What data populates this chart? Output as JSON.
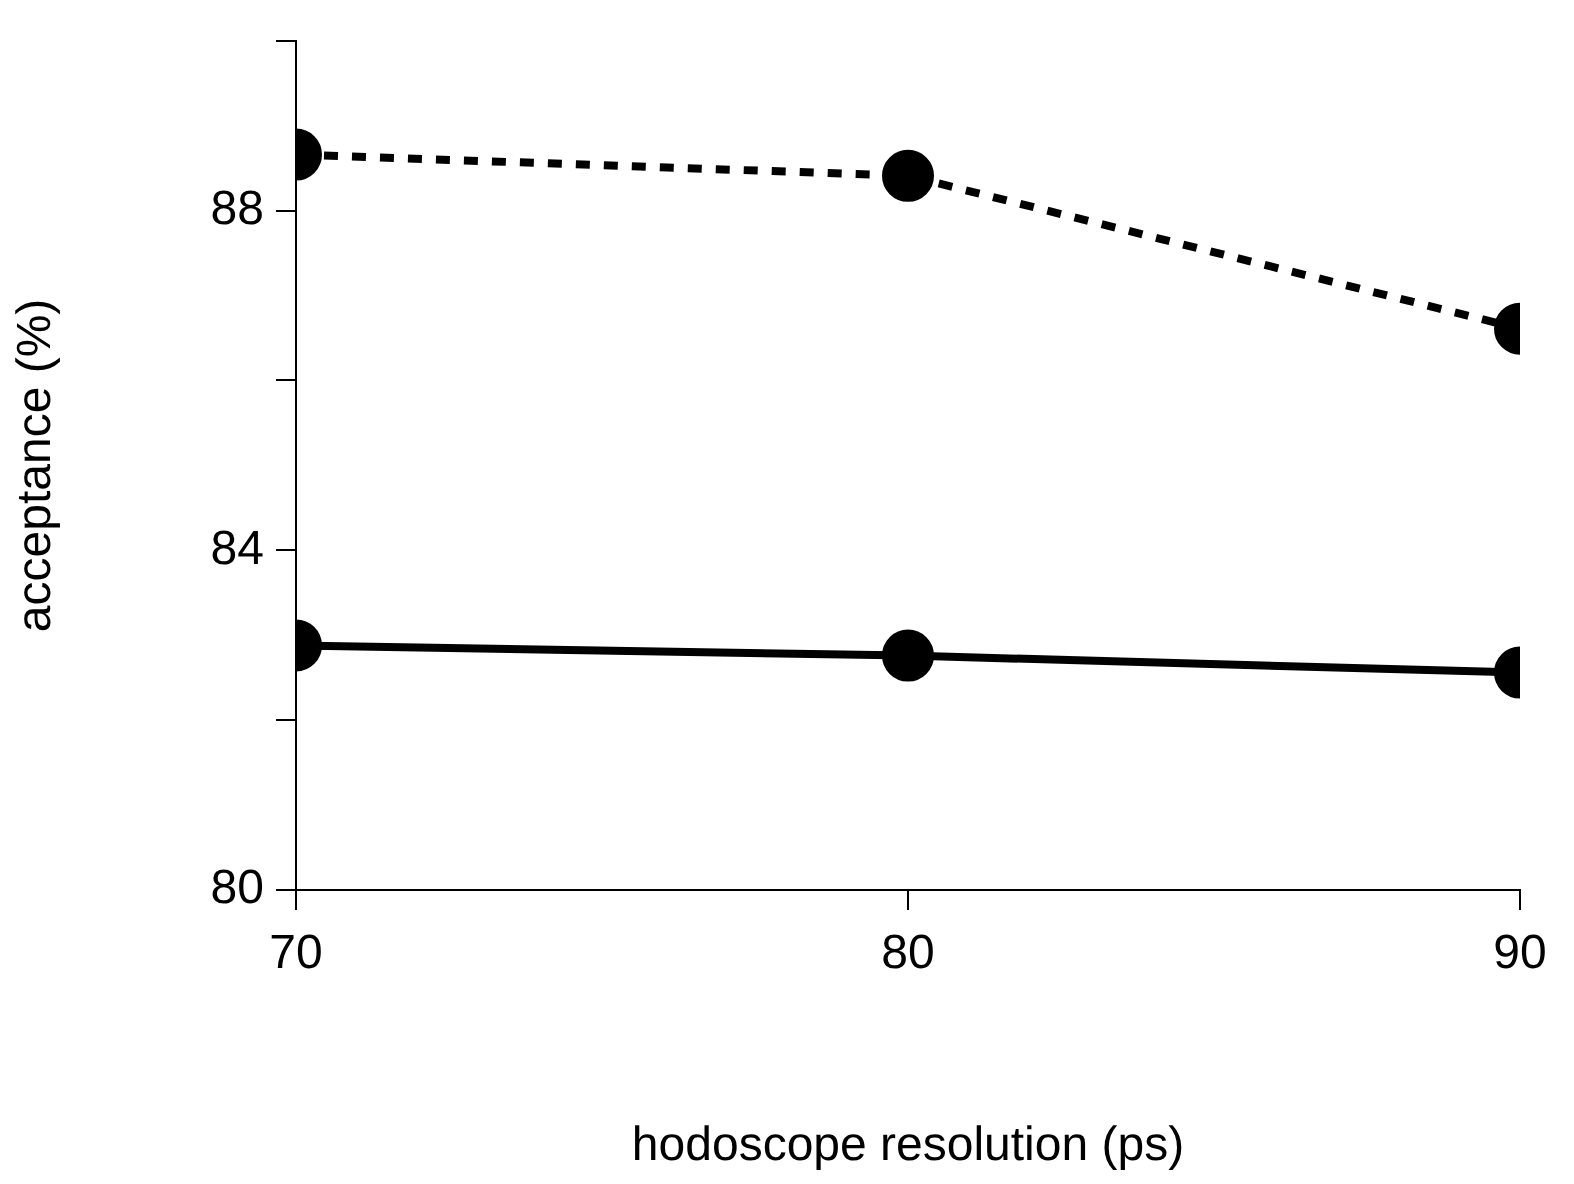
{
  "chart_data": {
    "type": "line",
    "xlabel": "hodoscope resolution (ps)",
    "ylabel": "acceptance (%)",
    "x": [
      70,
      80,
      90
    ],
    "series": [
      {
        "color": "#000000",
        "values": [
          88.66,
          88.41,
          86.61
        ],
        "line_style": "dotted"
      },
      {
        "color": "#000000",
        "values": [
          82.88,
          82.76,
          82.56
        ],
        "line_style": "solid"
      }
    ],
    "xlim": [
      70,
      90
    ],
    "xticks": [
      70,
      80,
      90
    ],
    "ylim": [
      80,
      90
    ],
    "yticks": [
      80,
      {
        "value": 82,
        "label": null
      },
      84,
      {
        "value": 86,
        "label": null
      },
      88,
      {
        "value": 90,
        "label": null
      }
    ],
    "grid": false,
    "legend": false,
    "marker": "circle"
  }
}
